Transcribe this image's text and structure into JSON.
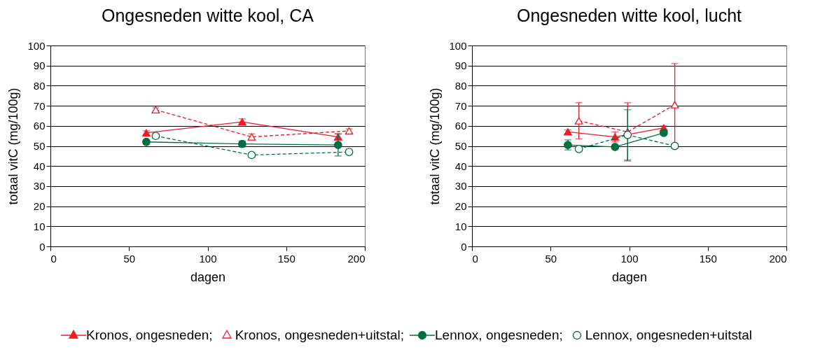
{
  "chart_data": [
    {
      "type": "line",
      "title": "Ongesneden witte kool, CA",
      "xlabel": "dagen",
      "ylabel": "totaal vitC (mg/100g)",
      "xlim": [
        0,
        200
      ],
      "xticks": [
        0,
        50,
        100,
        150,
        200
      ],
      "ylim": [
        0,
        100
      ],
      "yticks": [
        0,
        10,
        20,
        30,
        40,
        50,
        60,
        70,
        80,
        90,
        100
      ],
      "grid": "y",
      "legend": "bottom",
      "series": [
        {
          "name": "Kronos, ongesneden;",
          "color": "#ee1c25",
          "marker": "triangle",
          "line_style": "solid",
          "x": [
            61,
            122,
            183
          ],
          "values": [
            56.5,
            62,
            54.5
          ],
          "errors": [
            1,
            1.5,
            1.5
          ]
        },
        {
          "name": "Kronos, ongesneden+uitstal;",
          "color": "#ee1c25",
          "marker": "triangle",
          "line_style": "dashed",
          "x": [
            67,
            128,
            190
          ],
          "values": [
            68,
            54.5,
            57.5
          ],
          "errors": [
            1,
            1.5,
            1
          ]
        },
        {
          "name": "Lennox, ongesneden;",
          "color": "#007040",
          "marker": "circle",
          "line_style": "solid",
          "x": [
            61,
            122,
            183
          ],
          "values": [
            52,
            51,
            50.5
          ],
          "errors": [
            1,
            1.5,
            5.5
          ]
        },
        {
          "name": "Lennox, ongesneden+uitstal",
          "color": "#007040",
          "marker": "circle",
          "line_style": "dashed",
          "x": [
            67,
            128,
            190
          ],
          "values": [
            55,
            45.5,
            47
          ],
          "errors": [
            1,
            1,
            1
          ]
        }
      ]
    },
    {
      "type": "line",
      "title": "Ongesneden witte kool, lucht",
      "xlabel": "dagen",
      "ylabel": "totaal vitC (mg/100g)",
      "xlim": [
        0,
        200
      ],
      "xticks": [
        0,
        50,
        100,
        150,
        200
      ],
      "ylim": [
        0,
        100
      ],
      "yticks": [
        0,
        10,
        20,
        30,
        40,
        50,
        60,
        70,
        80,
        90,
        100
      ],
      "grid": "y",
      "series": [
        {
          "color": "#ee1c25",
          "marker": "triangle",
          "line_style": "solid",
          "x": [
            61,
            91,
            122
          ],
          "values": [
            57,
            54.5,
            59
          ],
          "errors": [
            1,
            2.5,
            1
          ]
        },
        {
          "color": "#ee1c25",
          "marker": "triangle",
          "line_style": "dashed",
          "x": [
            68,
            99,
            129
          ],
          "values": [
            62.5,
            57,
            70.5
          ],
          "errors": [
            9,
            14.5,
            20.5
          ]
        },
        {
          "color": "#007040",
          "marker": "circle",
          "line_style": "solid",
          "x": [
            61,
            91,
            122
          ],
          "values": [
            50.5,
            49.5,
            56.5
          ],
          "errors": [
            2.5,
            1,
            1
          ]
        },
        {
          "color": "#007040",
          "marker": "circle",
          "line_style": "dashed",
          "x": [
            68,
            99,
            129
          ],
          "values": [
            48.5,
            55.5,
            50
          ],
          "errors": [
            1,
            12.5,
            1
          ]
        }
      ]
    }
  ]
}
